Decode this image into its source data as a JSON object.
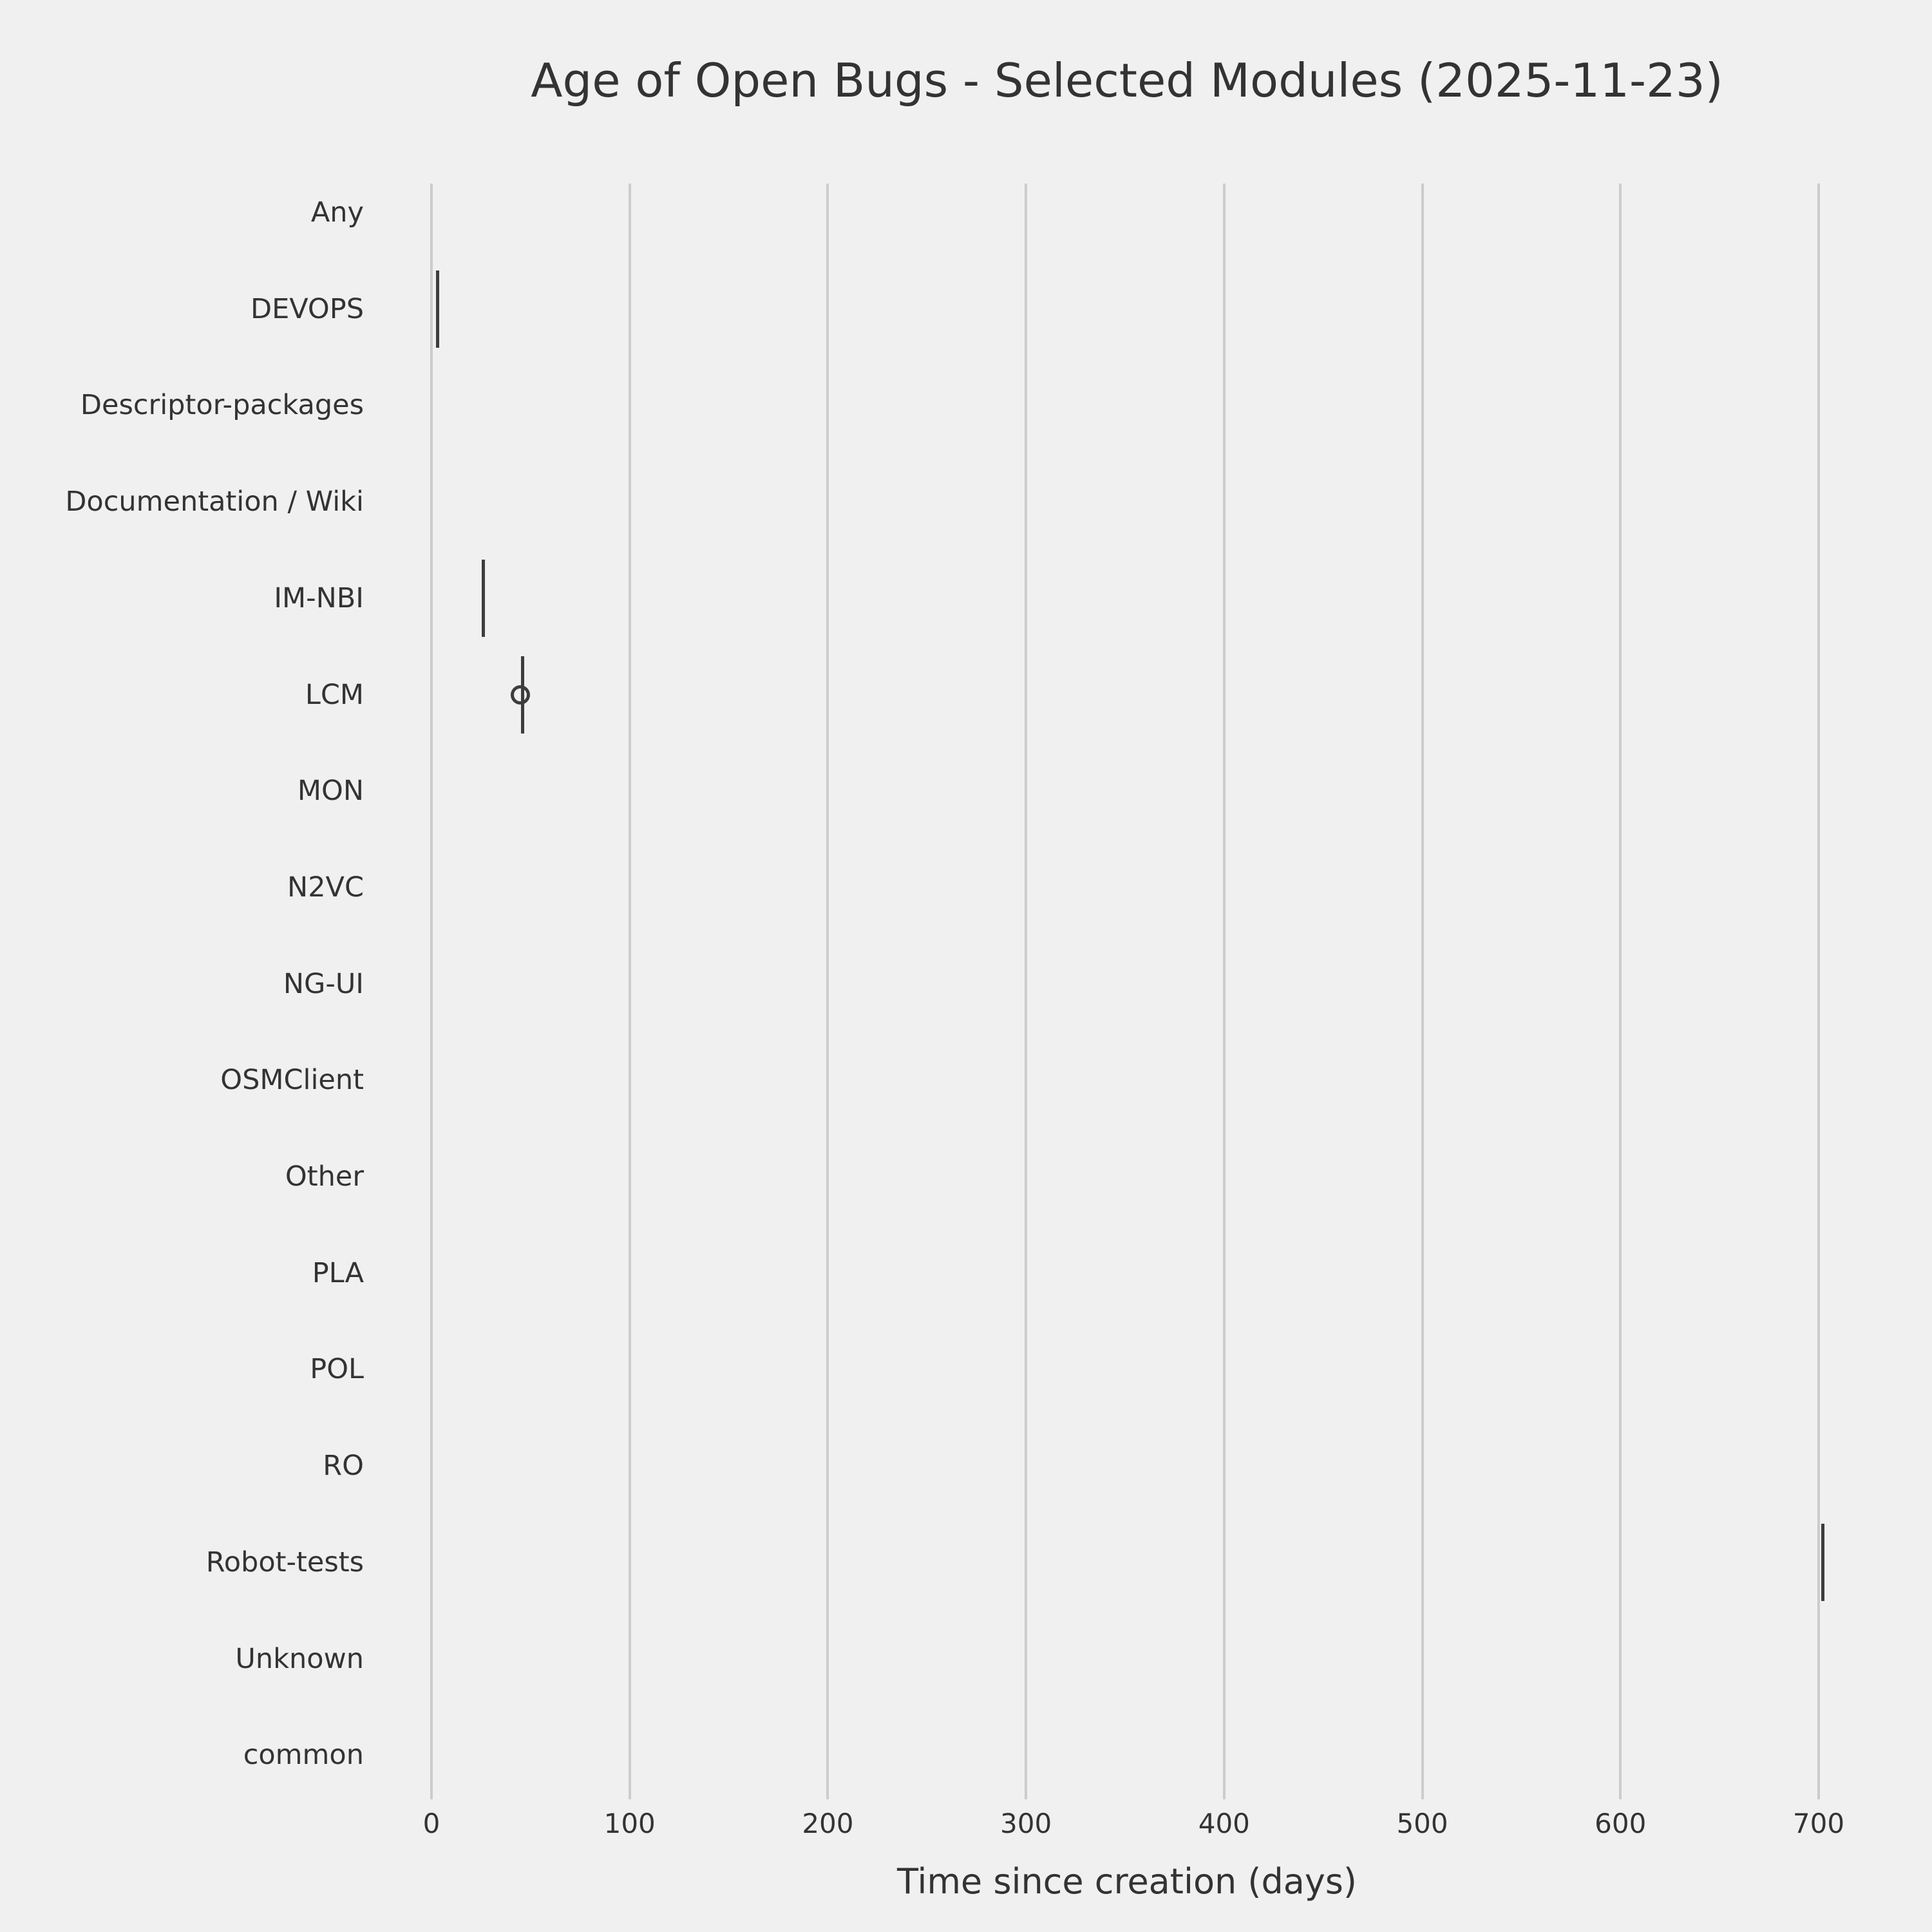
{
  "chart_data": {
    "type": "boxplot",
    "orientation": "horizontal",
    "title": "Age of Open Bugs - Selected Modules (2025-11-23)",
    "xlabel": "Time since creation (days)",
    "x_ticks": [
      0,
      100,
      200,
      300,
      400,
      500,
      600,
      700
    ],
    "xlim": [
      0,
      700
    ],
    "grid": "vertical-only",
    "legend": "none",
    "categories": [
      "Any",
      "DEVOPS",
      "Descriptor-packages",
      "Documentation / Wiki",
      "IM-NBI",
      "LCM",
      "MON",
      "N2VC",
      "NG-UI",
      "OSMClient",
      "Other",
      "PLA",
      "POL",
      "RO",
      "Robot-tests",
      "Unknown",
      "common"
    ],
    "modules": [
      {
        "label": "Any",
        "age_days": null
      },
      {
        "label": "DEVOPS",
        "age_days": 3
      },
      {
        "label": "Descriptor-packages",
        "age_days": null
      },
      {
        "label": "Documentation / Wiki",
        "age_days": null
      },
      {
        "label": "IM-NBI",
        "age_days": 26
      },
      {
        "label": "LCM",
        "age_days": 46,
        "outlier_days": 45
      },
      {
        "label": "MON",
        "age_days": null
      },
      {
        "label": "N2VC",
        "age_days": null
      },
      {
        "label": "NG-UI",
        "age_days": null
      },
      {
        "label": "OSMClient",
        "age_days": null
      },
      {
        "label": "Other",
        "age_days": null
      },
      {
        "label": "PLA",
        "age_days": null
      },
      {
        "label": "POL",
        "age_days": null
      },
      {
        "label": "RO",
        "age_days": null
      },
      {
        "label": "Robot-tests",
        "age_days": 702
      },
      {
        "label": "Unknown",
        "age_days": null
      },
      {
        "label": "common",
        "age_days": null
      }
    ],
    "colors": {
      "background": "#f0f0f0",
      "grid": "#cccccc",
      "mark": "#3d3d3d",
      "text": "#333333"
    }
  }
}
